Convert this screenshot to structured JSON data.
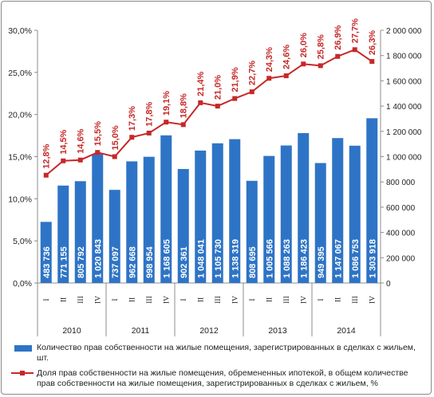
{
  "chart_data": {
    "type": "bar",
    "categories": [
      "I",
      "II",
      "III",
      "IV",
      "I",
      "II",
      "III",
      "IV",
      "I",
      "II",
      "III",
      "IV",
      "I",
      "II",
      "III",
      "IV",
      "I",
      "II",
      "III",
      "IV"
    ],
    "years": [
      "2010",
      "2011",
      "2012",
      "2013",
      "2014"
    ],
    "series": [
      {
        "name": "Количество прав собственности на жилые помещения, зарегистрированных в сделках с жильем, шт.",
        "type": "bar",
        "axis": "right",
        "color": "#2e74c6",
        "values": [
          483736,
          771155,
          805792,
          1020843,
          737097,
          962668,
          998954,
          1168605,
          902361,
          1048041,
          1105730,
          1138319,
          808695,
          1005566,
          1088263,
          1186423,
          949395,
          1147067,
          1086753,
          1303918
        ],
        "labels": [
          "483 736",
          "771 155",
          "805 792",
          "1 020 843",
          "737 097",
          "962 668",
          "998 954",
          "1 168 605",
          "902 361",
          "1 048 041",
          "1 105 730",
          "1 138 319",
          "808 695",
          "1 005 566",
          "1 088 263",
          "1 186 423",
          "949 395",
          "1 147 067",
          "1 086 753",
          "1 303 918"
        ]
      },
      {
        "name": "Доля прав собственности на жилые помещения, обремененных ипотекой, в общем количестве прав собственности на жилые помещения, зарегистрированных в сделках с жильем, %",
        "type": "line",
        "axis": "left",
        "color": "#c62828",
        "values": [
          12.8,
          14.5,
          14.6,
          15.5,
          15.0,
          17.3,
          17.8,
          19.1,
          18.8,
          21.4,
          21.0,
          21.9,
          22.7,
          24.3,
          24.6,
          26.0,
          25.8,
          26.9,
          27.7,
          26.3
        ],
        "labels": [
          "12,8%",
          "14,5%",
          "14,6%",
          "15,5%",
          "15,0%",
          "17,3%",
          "17,8%",
          "19,1%",
          "18,8%",
          "21,4%",
          "21,0%",
          "21,9%",
          "22,7%",
          "24,3%",
          "24,6%",
          "26,0%",
          "25,8%",
          "26,9%",
          "27,7%",
          "26,3%"
        ]
      }
    ],
    "y_left": {
      "ylim": [
        0,
        30
      ],
      "ticks": [
        0,
        5,
        10,
        15,
        20,
        25,
        30
      ],
      "tick_labels": [
        "0,0%",
        "5,0%",
        "10,0%",
        "15,0%",
        "20,0%",
        "25,0%",
        "30,0%"
      ]
    },
    "y_right": {
      "ylim": [
        0,
        2000000
      ],
      "ticks": [
        0,
        200000,
        400000,
        600000,
        800000,
        1000000,
        1200000,
        1400000,
        1600000,
        1800000,
        2000000
      ],
      "tick_labels": [
        "0",
        "200 000",
        "400 000",
        "600 000",
        "800 000",
        "1 000 000",
        "1 200 000",
        "1 400 000",
        "1 600 000",
        "1 800 000",
        "2 000 000"
      ]
    },
    "grid": false,
    "legend_position": "bottom"
  },
  "legend": {
    "bar_label": "Количество прав собственности на жилые помещения, зарегистрированных в сделках с жильем, шт.",
    "line_label": "Доля прав собственности на жилые помещения, обремененных ипотекой, в общем количестве прав собственности на жилые помещения, зарегистрированных в сделках с жильем, %"
  },
  "colors": {
    "bar": "#2e74c6",
    "line": "#c62828",
    "axis": "#8c8c8c",
    "text": "#1f1f1f"
  }
}
